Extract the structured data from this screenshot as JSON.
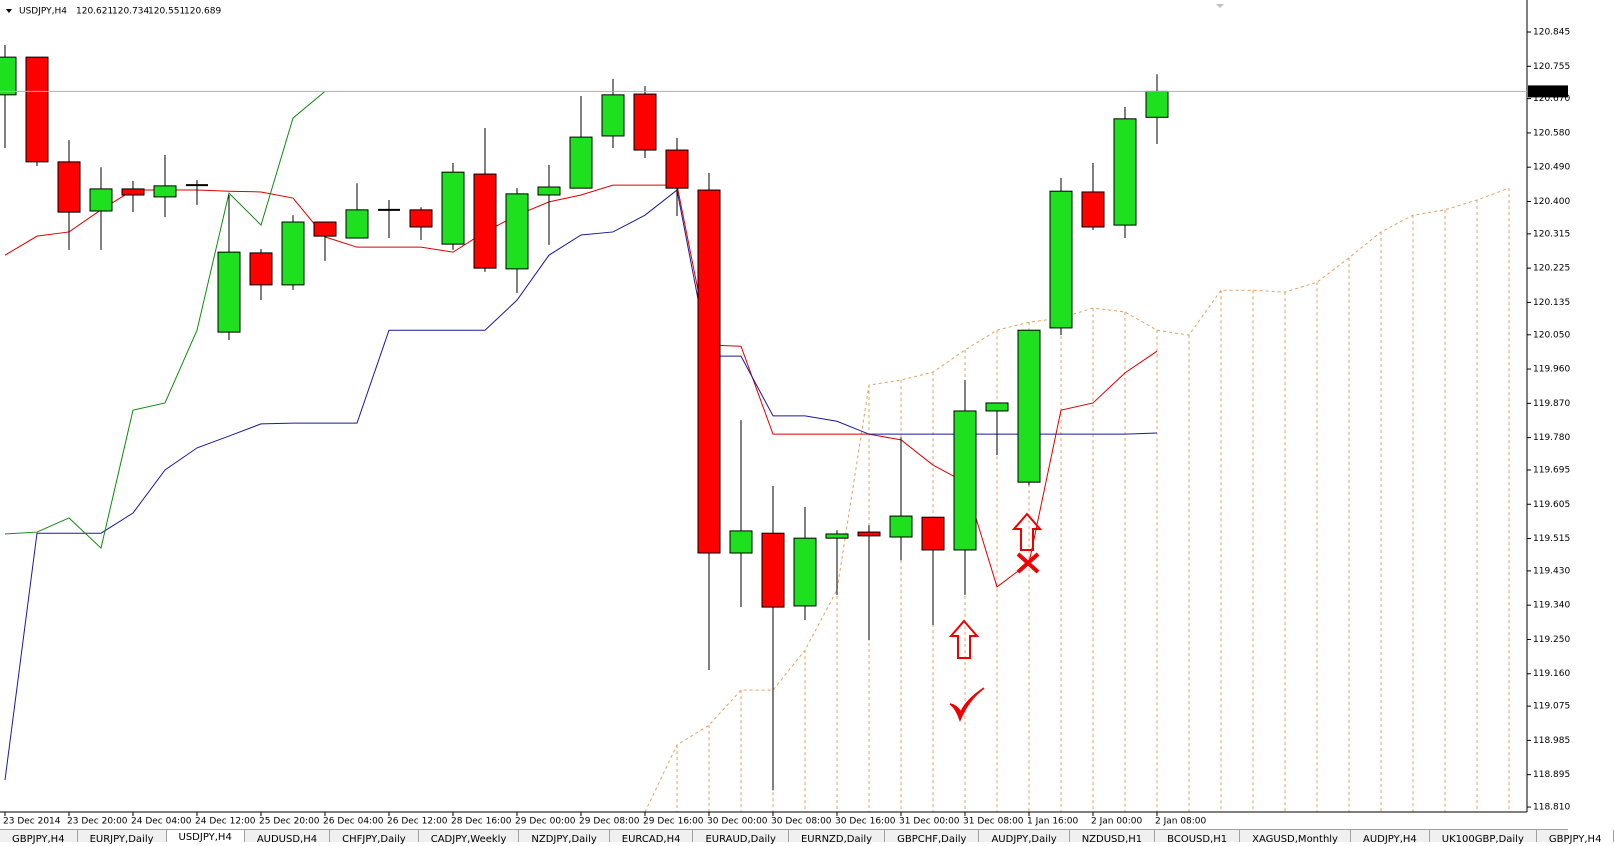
{
  "header": {
    "symbol": "USDJPY,H4"
  },
  "chart_data": {
    "type": "candlestick",
    "categories": [
      "23 Dec 2014",
      null,
      "23 Dec 20:00",
      null,
      "24 Dec 04:00",
      null,
      "24 Dec 12:00",
      null,
      "25 Dec 20:00",
      null,
      "26 Dec 04:00",
      null,
      "26 Dec 12:00",
      null,
      "28 Dec 16:00",
      null,
      "29 Dec 00:00",
      null,
      "29 Dec 08:00",
      null,
      "29 Dec 16:00",
      null,
      "30 Dec 00:00",
      null,
      "30 Dec 08:00",
      null,
      "30 Dec 16:00",
      null,
      "31 Dec 00:00",
      null,
      "31 Dec 08:00",
      null,
      "1 Jan 16:00",
      null,
      "2 Jan 00:00",
      null,
      "2 Jan 08:00",
      null,
      null,
      null,
      null,
      null,
      null,
      null,
      null,
      null,
      null,
      null
    ],
    "open": [
      120.68,
      120.779,
      120.504,
      120.375,
      120.433,
      120.412,
      120.443,
      120.057,
      120.265,
      120.181,
      120.346,
      120.304,
      120.378,
      120.378,
      120.288,
      120.472,
      120.223,
      120.417,
      120.435,
      120.572,
      120.682,
      120.535,
      120.43,
      119.477,
      119.529,
      119.338,
      119.516,
      119.532,
      119.519,
      119.571,
      119.485,
      119.85,
      119.663,
      120.068,
      120.425,
      120.338,
      120.621,
      null,
      null,
      null,
      null,
      null,
      null,
      null,
      null,
      null,
      null,
      null
    ],
    "high": [
      120.811,
      120.779,
      120.561,
      120.49,
      120.454,
      120.522,
      120.456,
      120.417,
      120.275,
      120.364,
      120.346,
      120.448,
      120.404,
      120.385,
      120.501,
      120.593,
      120.435,
      120.496,
      120.677,
      120.722,
      120.703,
      120.567,
      120.475,
      119.826,
      119.653,
      119.598,
      119.537,
      119.55,
      119.781,
      119.571,
      119.931,
      119.871,
      120.062,
      120.462,
      120.501,
      120.648,
      120.734,
      null,
      null,
      null,
      null,
      null,
      null,
      null,
      null,
      null,
      null,
      null
    ],
    "low": [
      120.54,
      120.493,
      120.273,
      120.273,
      120.372,
      120.359,
      120.391,
      120.036,
      120.141,
      120.168,
      120.244,
      120.304,
      120.304,
      120.299,
      120.273,
      120.215,
      120.16,
      120.286,
      120.435,
      120.54,
      120.514,
      120.362,
      119.17,
      119.335,
      118.854,
      119.301,
      119.367,
      119.248,
      119.458,
      119.288,
      119.367,
      119.734,
      119.655,
      120.049,
      120.325,
      120.304,
      120.551,
      null,
      null,
      null,
      null,
      null,
      null,
      null,
      null,
      null,
      null,
      null
    ],
    "close": [
      120.779,
      120.504,
      120.372,
      120.433,
      120.417,
      120.441,
      120.443,
      120.267,
      120.181,
      120.346,
      120.309,
      120.378,
      120.378,
      120.333,
      120.477,
      120.225,
      120.42,
      120.438,
      120.569,
      120.68,
      120.535,
      120.435,
      119.477,
      119.535,
      119.335,
      119.516,
      119.527,
      119.522,
      119.574,
      119.485,
      119.85,
      119.871,
      120.062,
      120.427,
      120.333,
      120.617,
      120.689,
      null,
      null,
      null,
      null,
      null,
      null,
      null,
      null,
      null,
      null,
      null
    ],
    "bull_color": "#1ee01e",
    "bear_color": "#ff0000",
    "ylim": [
      118.797,
      120.929
    ],
    "yticks": [
      120.845,
      120.755,
      {
        "value": 120.67,
        "label": "120.670"
      },
      {
        "value": 120.58,
        "label": "120.580"
      },
      {
        "value": 120.49,
        "label": "120.490"
      },
      {
        "value": 120.4,
        "label": "120.400"
      },
      120.315,
      120.225,
      120.135,
      {
        "value": 120.05,
        "label": "120.050"
      },
      {
        "value": 119.96,
        "label": "119.960"
      },
      {
        "value": 119.87,
        "label": "119.870"
      },
      {
        "value": 119.78,
        "label": "119.780"
      },
      119.695,
      119.605,
      119.515,
      {
        "value": 119.43,
        "label": "119.430"
      },
      {
        "value": 119.34,
        "label": "119.340"
      },
      {
        "value": 119.25,
        "label": "119.250"
      },
      {
        "value": 119.16,
        "label": "119.160"
      },
      119.075,
      118.985,
      118.895,
      {
        "value": 118.81,
        "label": "118.810"
      }
    ],
    "price_line": true,
    "indicators": [
      {
        "color": "#dd0000",
        "values": [
          120.259,
          120.309,
          120.32,
          120.378,
          120.43,
          120.43,
          120.43,
          120.427,
          120.425,
          120.409,
          120.307,
          120.28,
          120.28,
          120.28,
          120.267,
          120.32,
          120.364,
          120.399,
          120.417,
          120.443,
          120.443,
          120.443,
          120.023,
          120.02,
          119.789,
          119.789,
          119.789,
          119.789,
          119.774,
          119.708,
          119.663,
          119.388,
          119.451,
          119.852,
          119.871,
          119.95,
          120.007,
          null,
          null,
          null,
          null,
          null,
          null,
          null,
          null,
          null,
          null,
          null
        ]
      },
      {
        "color": "#1a1a9a",
        "values": [
          118.881,
          119.529,
          119.529,
          119.529,
          119.582,
          119.695,
          119.753,
          119.784,
          119.816,
          119.818,
          119.818,
          119.818,
          120.062,
          120.062,
          120.062,
          120.062,
          120.141,
          120.259,
          120.312,
          120.32,
          120.364,
          120.43,
          119.994,
          119.994,
          119.837,
          119.837,
          119.823,
          119.789,
          119.789,
          119.789,
          119.789,
          119.789,
          119.789,
          119.789,
          119.789,
          119.789,
          119.792,
          null,
          null,
          null,
          null,
          null,
          null,
          null,
          null,
          null,
          null,
          null
        ]
      },
      {
        "color": "#108a10",
        "values": [
          119.527,
          119.532,
          119.569,
          119.49,
          119.852,
          119.871,
          120.062,
          120.422,
          120.338,
          120.619,
          120.689,
          null,
          null,
          null,
          null,
          null,
          null,
          null,
          null,
          null,
          null,
          null,
          null,
          null,
          null,
          null,
          null,
          null,
          null,
          null,
          null,
          null,
          null,
          null,
          null,
          null,
          null,
          null,
          null,
          null,
          null,
          null,
          null,
          null,
          null,
          null,
          null,
          null
        ]
      }
    ],
    "cloud": {
      "color": "#e8a060",
      "values": [
        null,
        null,
        null,
        null,
        null,
        null,
        null,
        null,
        null,
        null,
        null,
        null,
        null,
        null,
        null,
        null,
        null,
        null,
        null,
        null,
        118.797,
        118.973,
        119.025,
        119.117,
        119.117,
        119.222,
        119.38,
        119.918,
        119.931,
        119.952,
        120.01,
        120.062,
        120.083,
        120.094,
        120.12,
        120.11,
        120.062,
        120.049,
        120.167,
        120.167,
        120.162,
        120.188,
        120.252,
        120.32,
        120.364,
        120.378,
        120.404,
        120.435
      ]
    }
  },
  "tabs": [
    "GBPJPY,H4",
    "EURJPY,Daily",
    "USDJPY,H4",
    "AUDUSD,H4",
    "CHFJPY,Daily",
    "CADJPY,Weekly",
    "NZDJPY,Daily",
    "EURCAD,H4",
    "EURAUD,Daily",
    "EURNZD,Daily",
    "GBPCHF,Daily",
    "AUDJPY,Daily",
    "NZDUSD,H1",
    "BCOUSD,H1",
    "XAGUSD,Monthly",
    "AUDJPY,H4",
    "UK100GBP,Daily",
    "GBPJPY,H4"
  ],
  "active_tab": 2
}
